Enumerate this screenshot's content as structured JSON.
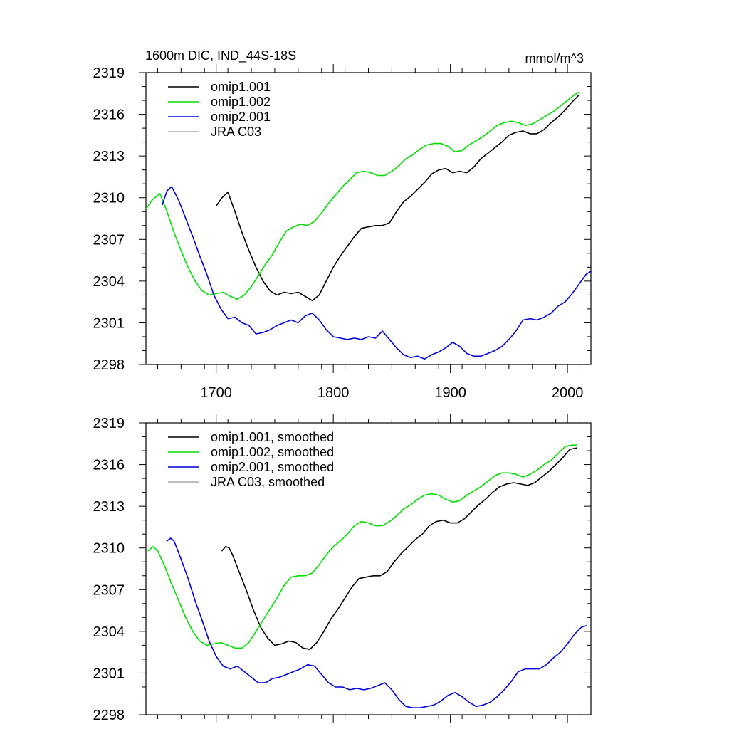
{
  "figure": {
    "title_left": "1600m DIC, IND_44S-18S",
    "title_right": "mmol/m^3"
  },
  "chart_data": [
    {
      "type": "line",
      "panel": "top",
      "xlim": [
        1640,
        2020
      ],
      "ylim": [
        2298,
        2319
      ],
      "xticks": [
        1700,
        1800,
        1900,
        2000
      ],
      "xtick_labels": [
        "1700",
        "1800",
        "1900",
        "2000"
      ],
      "yticks": [
        2298,
        2301,
        2304,
        2307,
        2310,
        2313,
        2316,
        2319
      ],
      "ytick_labels": [
        "2298",
        "2301",
        "2304",
        "2307",
        "2310",
        "2313",
        "2316",
        "2319"
      ],
      "legend_position": "top-left",
      "series": [
        {
          "name": "omip1.001",
          "color": "#000000",
          "x": [
            1700,
            1705,
            1710,
            1716,
            1722,
            1728,
            1734,
            1740,
            1746,
            1752,
            1758,
            1764,
            1770,
            1776,
            1782,
            1788,
            1794,
            1800,
            1806,
            1812,
            1818,
            1824,
            1830,
            1836,
            1842,
            1848,
            1854,
            1860,
            1866,
            1872,
            1878,
            1884,
            1890,
            1896,
            1902,
            1908,
            1914,
            1920,
            1926,
            1932,
            1938,
            1944,
            1950,
            1956,
            1962,
            1968,
            1974,
            1980,
            1986,
            1992,
            1998,
            2004,
            2010
          ],
          "y": [
            2309.4,
            2310.0,
            2310.4,
            2309.0,
            2307.5,
            2306.2,
            2305.0,
            2304.0,
            2303.3,
            2303.0,
            2303.2,
            2303.1,
            2303.2,
            2302.9,
            2302.6,
            2303.0,
            2304.0,
            2305.0,
            2305.8,
            2306.5,
            2307.2,
            2307.8,
            2307.9,
            2308.0,
            2308.0,
            2308.2,
            2309.0,
            2309.7,
            2310.1,
            2310.6,
            2311.1,
            2311.7,
            2312.0,
            2312.1,
            2311.8,
            2311.9,
            2311.8,
            2312.2,
            2312.8,
            2313.2,
            2313.6,
            2314.0,
            2314.5,
            2314.7,
            2314.8,
            2314.6,
            2314.6,
            2314.9,
            2315.4,
            2315.8,
            2316.3,
            2316.9,
            2317.4
          ]
        },
        {
          "name": "omip1.002",
          "color": "#00dd00",
          "x": [
            1640,
            1646,
            1652,
            1658,
            1664,
            1670,
            1676,
            1682,
            1688,
            1694,
            1700,
            1706,
            1712,
            1718,
            1724,
            1730,
            1736,
            1742,
            1748,
            1754,
            1760,
            1766,
            1772,
            1778,
            1784,
            1790,
            1796,
            1802,
            1808,
            1814,
            1820,
            1826,
            1832,
            1838,
            1844,
            1850,
            1856,
            1862,
            1868,
            1874,
            1880,
            1886,
            1892,
            1898,
            1904,
            1910,
            1916,
            1922,
            1928,
            1934,
            1940,
            1946,
            1952,
            1958,
            1964,
            1970,
            1976,
            1982,
            1988,
            1994,
            2000,
            2006,
            2010
          ],
          "y": [
            2309.2,
            2309.9,
            2310.3,
            2309.0,
            2307.5,
            2306.2,
            2305.0,
            2304.0,
            2303.3,
            2303.0,
            2303.1,
            2303.2,
            2302.9,
            2302.7,
            2303.0,
            2303.6,
            2304.4,
            2305.2,
            2305.9,
            2306.8,
            2307.6,
            2307.9,
            2308.1,
            2308.0,
            2308.3,
            2308.9,
            2309.6,
            2310.2,
            2310.8,
            2311.3,
            2311.8,
            2311.9,
            2311.8,
            2311.6,
            2311.6,
            2311.9,
            2312.3,
            2312.8,
            2313.1,
            2313.5,
            2313.8,
            2313.9,
            2313.9,
            2313.7,
            2313.3,
            2313.4,
            2313.8,
            2314.1,
            2314.4,
            2314.8,
            2315.2,
            2315.4,
            2315.5,
            2315.4,
            2315.2,
            2315.3,
            2315.6,
            2315.9,
            2316.2,
            2316.6,
            2317.0,
            2317.4,
            2317.6
          ]
        },
        {
          "name": "omip2.001",
          "color": "#0000dd",
          "x": [
            1654,
            1658,
            1662,
            1668,
            1674,
            1680,
            1686,
            1692,
            1698,
            1704,
            1710,
            1716,
            1722,
            1728,
            1734,
            1740,
            1746,
            1752,
            1758,
            1764,
            1770,
            1776,
            1782,
            1788,
            1794,
            1800,
            1806,
            1812,
            1818,
            1824,
            1830,
            1836,
            1842,
            1848,
            1854,
            1860,
            1866,
            1872,
            1878,
            1884,
            1890,
            1896,
            1902,
            1908,
            1914,
            1920,
            1926,
            1932,
            1938,
            1944,
            1950,
            1956,
            1962,
            1968,
            1974,
            1980,
            1986,
            1992,
            1998,
            2004,
            2010,
            2016,
            2020
          ],
          "y": [
            2309.5,
            2310.5,
            2310.8,
            2309.8,
            2308.5,
            2307.2,
            2305.8,
            2304.5,
            2303.0,
            2302.0,
            2301.3,
            2301.4,
            2301.0,
            2300.8,
            2300.2,
            2300.3,
            2300.5,
            2300.8,
            2301.0,
            2301.2,
            2301.0,
            2301.5,
            2301.7,
            2301.2,
            2300.5,
            2300.0,
            2299.9,
            2299.8,
            2299.9,
            2299.8,
            2300.0,
            2299.9,
            2300.4,
            2299.8,
            2299.2,
            2298.7,
            2298.5,
            2298.6,
            2298.4,
            2298.7,
            2298.9,
            2299.2,
            2299.6,
            2299.3,
            2298.8,
            2298.6,
            2298.6,
            2298.8,
            2299.0,
            2299.3,
            2299.8,
            2300.4,
            2301.2,
            2301.3,
            2301.2,
            2301.4,
            2301.7,
            2302.2,
            2302.5,
            2303.1,
            2303.8,
            2304.5,
            2304.7
          ]
        },
        {
          "name": "JRA C03",
          "color": "#aaaaaa",
          "x": [],
          "y": []
        }
      ]
    },
    {
      "type": "line",
      "panel": "bottom",
      "xlim": [
        1640,
        2020
      ],
      "ylim": [
        2298,
        2319
      ],
      "xticks": [
        1700,
        1800,
        1900,
        2000
      ],
      "yticks": [
        2298,
        2301,
        2304,
        2307,
        2310,
        2313,
        2316,
        2319
      ],
      "ytick_labels": [
        "2298",
        "2301",
        "2304",
        "2307",
        "2310",
        "2313",
        "2316",
        "2319"
      ],
      "legend_position": "top-left",
      "series": [
        {
          "name": "omip1.001, smoothed",
          "color": "#000000",
          "x": [
            1705,
            1708,
            1711,
            1714,
            1720,
            1726,
            1732,
            1738,
            1744,
            1750,
            1756,
            1762,
            1768,
            1774,
            1780,
            1786,
            1792,
            1798,
            1804,
            1810,
            1816,
            1822,
            1828,
            1834,
            1840,
            1846,
            1852,
            1858,
            1864,
            1870,
            1876,
            1882,
            1888,
            1894,
            1900,
            1906,
            1912,
            1918,
            1924,
            1930,
            1936,
            1942,
            1948,
            1954,
            1960,
            1966,
            1972,
            1978,
            1984,
            1990,
            1996,
            2002,
            2008
          ],
          "y": [
            2309.8,
            2310.1,
            2310.0,
            2309.5,
            2308.2,
            2306.9,
            2305.5,
            2304.3,
            2303.5,
            2303.0,
            2303.1,
            2303.3,
            2303.2,
            2302.8,
            2302.7,
            2303.2,
            2304.0,
            2304.9,
            2305.6,
            2306.4,
            2307.2,
            2307.8,
            2307.9,
            2308.0,
            2308.0,
            2308.3,
            2309.0,
            2309.6,
            2310.1,
            2310.6,
            2311.0,
            2311.6,
            2311.9,
            2312.0,
            2311.8,
            2311.8,
            2312.1,
            2312.6,
            2313.1,
            2313.5,
            2314.0,
            2314.4,
            2314.6,
            2314.7,
            2314.6,
            2314.5,
            2314.7,
            2315.1,
            2315.5,
            2316.0,
            2316.5,
            2317.1,
            2317.2
          ]
        },
        {
          "name": "omip1.002, smoothed",
          "color": "#00dd00",
          "x": [
            1642,
            1646,
            1650,
            1656,
            1662,
            1668,
            1674,
            1680,
            1686,
            1692,
            1698,
            1704,
            1710,
            1716,
            1722,
            1728,
            1734,
            1740,
            1746,
            1752,
            1758,
            1764,
            1770,
            1776,
            1782,
            1788,
            1794,
            1800,
            1806,
            1812,
            1818,
            1824,
            1830,
            1836,
            1842,
            1848,
            1854,
            1860,
            1866,
            1872,
            1878,
            1884,
            1890,
            1896,
            1902,
            1908,
            1914,
            1920,
            1926,
            1932,
            1938,
            1944,
            1950,
            1956,
            1962,
            1968,
            1974,
            1980,
            1986,
            1992,
            1998,
            2004,
            2008
          ],
          "y": [
            2309.8,
            2310.1,
            2309.8,
            2308.7,
            2307.4,
            2306.2,
            2305.0,
            2304.0,
            2303.3,
            2303.0,
            2303.1,
            2303.2,
            2303.0,
            2302.8,
            2302.8,
            2303.2,
            2304.0,
            2304.8,
            2305.6,
            2306.4,
            2307.3,
            2307.9,
            2308.0,
            2308.0,
            2308.2,
            2308.8,
            2309.5,
            2310.1,
            2310.5,
            2311.0,
            2311.6,
            2311.9,
            2311.8,
            2311.6,
            2311.6,
            2311.9,
            2312.3,
            2312.8,
            2313.1,
            2313.5,
            2313.8,
            2313.9,
            2313.8,
            2313.5,
            2313.3,
            2313.4,
            2313.8,
            2314.1,
            2314.4,
            2314.8,
            2315.2,
            2315.4,
            2315.4,
            2315.3,
            2315.1,
            2315.3,
            2315.6,
            2316.0,
            2316.3,
            2316.8,
            2317.3,
            2317.4,
            2317.4
          ]
        },
        {
          "name": "omip2.001, smoothed",
          "color": "#0000dd",
          "x": [
            1658,
            1661,
            1664,
            1670,
            1676,
            1682,
            1688,
            1694,
            1700,
            1706,
            1712,
            1718,
            1724,
            1730,
            1736,
            1742,
            1748,
            1754,
            1760,
            1766,
            1772,
            1778,
            1784,
            1790,
            1796,
            1802,
            1808,
            1814,
            1820,
            1826,
            1832,
            1838,
            1844,
            1850,
            1856,
            1862,
            1868,
            1874,
            1880,
            1886,
            1892,
            1898,
            1904,
            1910,
            1916,
            1922,
            1928,
            1934,
            1940,
            1946,
            1952,
            1958,
            1964,
            1970,
            1976,
            1982,
            1988,
            1994,
            2000,
            2006,
            2012,
            2016
          ],
          "y": [
            2310.5,
            2310.7,
            2310.5,
            2309.2,
            2307.8,
            2306.2,
            2304.8,
            2303.3,
            2302.2,
            2301.5,
            2301.3,
            2301.5,
            2301.1,
            2300.7,
            2300.3,
            2300.3,
            2300.6,
            2300.7,
            2300.9,
            2301.1,
            2301.3,
            2301.6,
            2301.5,
            2300.9,
            2300.3,
            2300.0,
            2300.0,
            2299.8,
            2299.9,
            2299.8,
            2299.9,
            2300.1,
            2300.3,
            2299.8,
            2299.1,
            2298.6,
            2298.5,
            2298.5,
            2298.6,
            2298.7,
            2299.0,
            2299.4,
            2299.6,
            2299.3,
            2298.9,
            2298.6,
            2298.7,
            2298.9,
            2299.3,
            2299.8,
            2300.4,
            2301.1,
            2301.3,
            2301.3,
            2301.3,
            2301.6,
            2302.1,
            2302.5,
            2303.1,
            2303.8,
            2304.3,
            2304.4
          ]
        },
        {
          "name": "JRA C03, smoothed",
          "color": "#aaaaaa",
          "x": [],
          "y": []
        }
      ]
    }
  ]
}
